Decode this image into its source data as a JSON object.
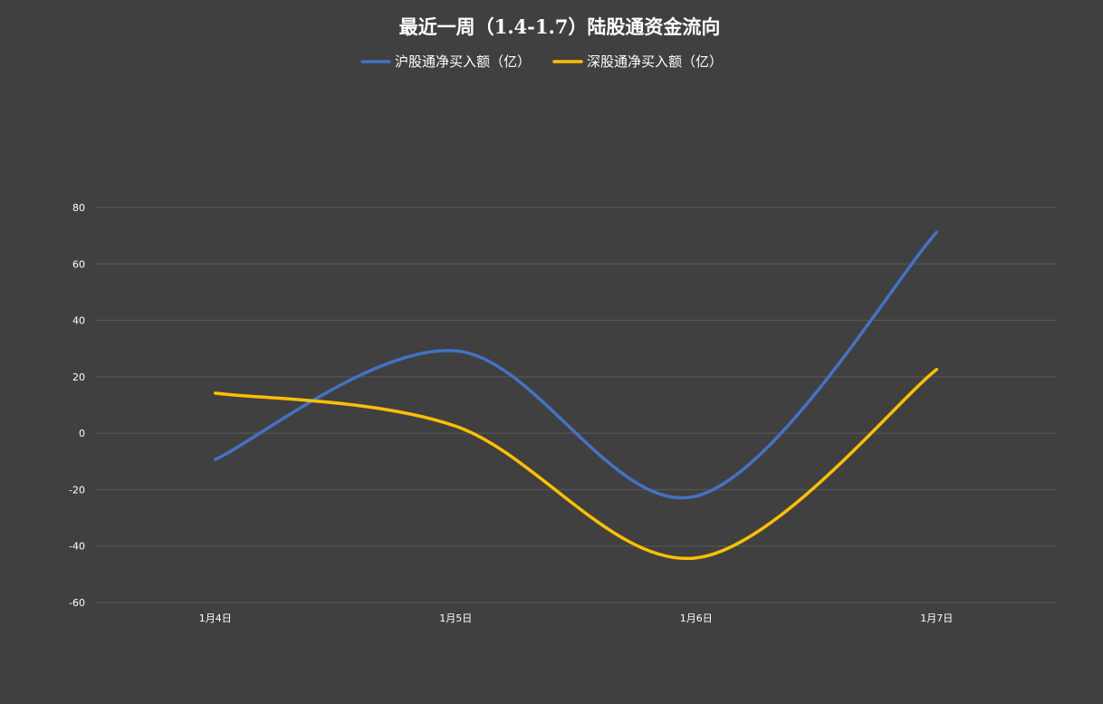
{
  "chart_data": {
    "type": "line",
    "title": "最近一周（1.4-1.7）陆股通资金流向",
    "xlabel": "",
    "ylabel": "",
    "categories": [
      "1月4日",
      "1月5日",
      "1月6日",
      "1月7日"
    ],
    "ylim": [
      -60,
      80
    ],
    "yticks": [
      80,
      60,
      40,
      20,
      0,
      -20,
      -40,
      -60
    ],
    "grid": true,
    "smooth": true,
    "legend_position": "top-center",
    "series": [
      {
        "name": "沪股通净买入额（亿）",
        "color": "#4472C4",
        "values": [
          -9.3,
          29.2,
          -22.3,
          71.2
        ]
      },
      {
        "name": "深股通净买入额（亿）",
        "color": "#FFC000",
        "values": [
          14.2,
          2.5,
          -44.2,
          22.6
        ]
      }
    ]
  }
}
